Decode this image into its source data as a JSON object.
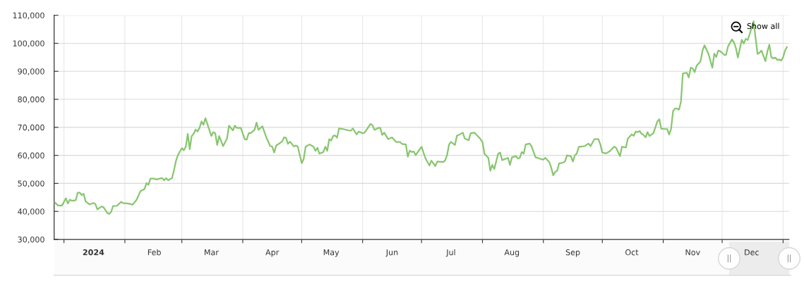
{
  "chart_data": {
    "type": "line",
    "annotations": [
      "Show all"
    ],
    "x": [
      "2023-12-27",
      "2023-12-29",
      "2023-12-31",
      "2024-01-02",
      "2024-01-03",
      "2024-01-04",
      "2024-01-05",
      "2024-01-07",
      "2024-01-08",
      "2024-01-09",
      "2024-01-10",
      "2024-01-11",
      "2024-01-12",
      "2024-01-14",
      "2024-01-16",
      "2024-01-17",
      "2024-01-18",
      "2024-01-20",
      "2024-01-21",
      "2024-01-23",
      "2024-01-24",
      "2024-01-25",
      "2024-01-26",
      "2024-01-28",
      "2024-01-30",
      "2024-01-31",
      "2024-02-03",
      "2024-02-05",
      "2024-02-07",
      "2024-02-09",
      "2024-02-11",
      "2024-02-12",
      "2024-02-13",
      "2024-02-14",
      "2024-02-16",
      "2024-02-17",
      "2024-02-20",
      "2024-02-21",
      "2024-02-22",
      "2024-02-23",
      "2024-02-25",
      "2024-02-26",
      "2024-02-27",
      "2024-02-28",
      "2024-03-01",
      "2024-03-02",
      "2024-03-03",
      "2024-03-04",
      "2024-03-05",
      "2024-03-06",
      "2024-03-07",
      "2024-03-08",
      "2024-03-09",
      "2024-03-10",
      "2024-03-11",
      "2024-03-12",
      "2024-03-13",
      "2024-03-16",
      "2024-03-17",
      "2024-03-18",
      "2024-03-19",
      "2024-03-20",
      "2024-03-22",
      "2024-03-24",
      "2024-03-25",
      "2024-03-27",
      "2024-03-28",
      "2024-03-29",
      "2024-03-31",
      "2024-04-02",
      "2024-04-03",
      "2024-04-04",
      "2024-04-05",
      "2024-04-07",
      "2024-04-08",
      "2024-04-09",
      "2024-04-11",
      "2024-04-13",
      "2024-04-15",
      "2024-04-16",
      "2024-04-17",
      "2024-04-18",
      "2024-04-21",
      "2024-04-22",
      "2024-04-23",
      "2024-04-24",
      "2024-04-25",
      "2024-04-27",
      "2024-04-28",
      "2024-04-29",
      "2024-05-01",
      "2024-05-02",
      "2024-05-03",
      "2024-05-05",
      "2024-05-06",
      "2024-05-07",
      "2024-05-08",
      "2024-05-09",
      "2024-05-10",
      "2024-05-12",
      "2024-05-13",
      "2024-05-14",
      "2024-05-15",
      "2024-05-16",
      "2024-05-17",
      "2024-05-18",
      "2024-05-19",
      "2024-05-20",
      "2024-05-22",
      "2024-05-25",
      "2024-05-26",
      "2024-05-27",
      "2024-05-29",
      "2024-05-30",
      "2024-06-01",
      "2024-06-02",
      "2024-06-05",
      "2024-06-06",
      "2024-06-07",
      "2024-06-09",
      "2024-06-10",
      "2024-06-11",
      "2024-06-12",
      "2024-06-14",
      "2024-06-16",
      "2024-06-18",
      "2024-06-20",
      "2024-06-21",
      "2024-06-23",
      "2024-06-24",
      "2024-06-25",
      "2024-06-26",
      "2024-06-27",
      "2024-06-28",
      "2024-07-01",
      "2024-07-03",
      "2024-07-05",
      "2024-07-06",
      "2024-07-08",
      "2024-07-09",
      "2024-07-12",
      "2024-07-13",
      "2024-07-14",
      "2024-07-15",
      "2024-07-16",
      "2024-07-18",
      "2024-07-19",
      "2024-07-20",
      "2024-07-22",
      "2024-07-23",
      "2024-07-25",
      "2024-07-26",
      "2024-07-28",
      "2024-07-29",
      "2024-07-31",
      "2024-08-01",
      "2024-08-02",
      "2024-08-04",
      "2024-08-05",
      "2024-08-06",
      "2024-08-07",
      "2024-08-09",
      "2024-08-10",
      "2024-08-11",
      "2024-08-14",
      "2024-08-15",
      "2024-08-16",
      "2024-08-18",
      "2024-08-19",
      "2024-08-20",
      "2024-08-21",
      "2024-08-22",
      "2024-08-23",
      "2024-08-25",
      "2024-08-26",
      "2024-08-28",
      "2024-08-30",
      "2024-08-31",
      "2024-09-01",
      "2024-09-02",
      "2024-09-04",
      "2024-09-05",
      "2024-09-06",
      "2024-09-07",
      "2024-09-08",
      "2024-09-09",
      "2024-09-11",
      "2024-09-12",
      "2024-09-13",
      "2024-09-15",
      "2024-09-16",
      "2024-09-17",
      "2024-09-18",
      "2024-09-19",
      "2024-09-22",
      "2024-09-24",
      "2024-09-25",
      "2024-09-27",
      "2024-09-29",
      "2024-09-30",
      "2024-10-01",
      "2024-10-03",
      "2024-10-05",
      "2024-10-07",
      "2024-10-08",
      "2024-10-10",
      "2024-10-11",
      "2024-10-13",
      "2024-10-14",
      "2024-10-16",
      "2024-10-17",
      "2024-10-18",
      "2024-10-19",
      "2024-10-20",
      "2024-10-21",
      "2024-10-22",
      "2024-10-23",
      "2024-10-24",
      "2024-10-25",
      "2024-10-27",
      "2024-10-29",
      "2024-10-30",
      "2024-10-31",
      "2024-11-02",
      "2024-11-03",
      "2024-11-04",
      "2024-11-05",
      "2024-11-06",
      "2024-11-07",
      "2024-11-08",
      "2024-11-09",
      "2024-11-10",
      "2024-11-11",
      "2024-11-13",
      "2024-11-14",
      "2024-11-15",
      "2024-11-16",
      "2024-11-17",
      "2024-11-18",
      "2024-11-20",
      "2024-11-21",
      "2024-11-22",
      "2024-11-23",
      "2024-11-24",
      "2024-11-26",
      "2024-11-27",
      "2024-11-28",
      "2024-11-29",
      "2024-11-30",
      "2024-12-02",
      "2024-12-03",
      "2024-12-04",
      "2024-12-06",
      "2024-12-07",
      "2024-12-08",
      "2024-12-09",
      "2024-12-11",
      "2024-12-12",
      "2024-12-13",
      "2024-12-14",
      "2024-12-15",
      "2024-12-17",
      "2024-12-19",
      "2024-12-20",
      "2024-12-21",
      "2024-12-23",
      "2024-12-24",
      "2024-12-25",
      "2024-12-26",
      "2024-12-27",
      "2024-12-28",
      "2024-12-29",
      "2024-12-30",
      "2024-12-31",
      "2025-01-01",
      "2025-01-02",
      "2025-01-03"
    ],
    "series": [
      {
        "color": "#87c66e",
        "values": [
          43400,
          42100,
          42100,
          44700,
          42800,
          44200,
          43800,
          44000,
          46700,
          46700,
          45800,
          46300,
          43600,
          42500,
          43000,
          42600,
          40700,
          41700,
          41600,
          39500,
          39100,
          39800,
          41900,
          42000,
          43400,
          43000,
          42800,
          42400,
          44200,
          47300,
          48000,
          50100,
          49500,
          51700,
          51700,
          51400,
          51900,
          51100,
          51900,
          51100,
          51900,
          54700,
          58000,
          60100,
          62600,
          61800,
          63100,
          67700,
          62200,
          66900,
          67700,
          69200,
          68500,
          69800,
          72100,
          70900,
          73300,
          66900,
          68300,
          67900,
          63700,
          66900,
          63300,
          66000,
          70600,
          68900,
          70600,
          69800,
          69800,
          65800,
          65600,
          67900,
          67900,
          69100,
          71700,
          69100,
          70400,
          66400,
          63300,
          63100,
          61000,
          63500,
          64900,
          66400,
          66300,
          64100,
          64900,
          63200,
          63500,
          63100,
          57200,
          58700,
          63100,
          63900,
          63500,
          63100,
          61600,
          62700,
          60600,
          61200,
          63100,
          61600,
          65800,
          65300,
          66900,
          67100,
          66300,
          69600,
          69400,
          68900,
          68800,
          69600,
          67500,
          68500,
          67900,
          68100,
          71200,
          70800,
          69100,
          69800,
          69800,
          67300,
          68100,
          65800,
          66400,
          64800,
          64800,
          64100,
          63900,
          59500,
          61700,
          61200,
          61400,
          60100,
          63100,
          58900,
          56400,
          58100,
          56200,
          57800,
          57600,
          58200,
          60100,
          63900,
          64800,
          63700,
          67000,
          67300,
          68100,
          66000,
          65400,
          67900,
          68100,
          67300,
          65800,
          64800,
          60600,
          59100,
          54500,
          56600,
          55100,
          60600,
          61000,
          58300,
          59100,
          56600,
          59300,
          59700,
          58900,
          59100,
          61200,
          60600,
          63900,
          64200,
          63200,
          59300,
          58900,
          58600,
          58500,
          59100,
          57600,
          55600,
          52900,
          54100,
          54500,
          57100,
          57400,
          57800,
          60000,
          59700,
          57800,
          60000,
          60600,
          63000,
          63300,
          64200,
          63300,
          65800,
          65800,
          63900,
          61000,
          60700,
          61600,
          63100,
          62700,
          59700,
          63100,
          62800,
          66000,
          67500,
          67000,
          68500,
          68300,
          68700,
          67700,
          67300,
          66400,
          68300,
          66900,
          67900,
          72100,
          72900,
          69500,
          69400,
          69400,
          67400,
          69400,
          75800,
          76700,
          76700,
          76300,
          79000,
          89200,
          89500,
          87800,
          91300,
          91000,
          89700,
          92000,
          93600,
          97400,
          99300,
          97800,
          96300,
          91300,
          96300,
          95100,
          97400,
          97200,
          95900,
          95900,
          98900,
          101400,
          100300,
          98300,
          94900,
          101300,
          99900,
          101600,
          101200,
          103300,
          107900,
          96200,
          96600,
          97400,
          93600,
          97000,
          99500,
          95100,
          94600,
          94900,
          94100,
          94200,
          93800,
          94900,
          97400,
          98700
        ]
      }
    ],
    "xlim": [
      "2023-12-27",
      "2025-01-04"
    ],
    "xticks": [
      {
        "value": "2024-01-01",
        "label": null
      },
      {
        "value": "2024-01-16",
        "label": "2024"
      },
      {
        "value": "2024-02-01",
        "label": null
      },
      {
        "value": "2024-02-16",
        "label": "Feb"
      },
      {
        "value": "2024-03-01",
        "label": null
      },
      {
        "value": "2024-03-16",
        "label": "Mar"
      },
      {
        "value": "2024-04-01",
        "label": null
      },
      {
        "value": "2024-04-16",
        "label": "Apr"
      },
      {
        "value": "2024-05-01",
        "label": null
      },
      {
        "value": "2024-05-16",
        "label": "May"
      },
      {
        "value": "2024-06-01",
        "label": null
      },
      {
        "value": "2024-06-16",
        "label": "Jun"
      },
      {
        "value": "2024-07-01",
        "label": null
      },
      {
        "value": "2024-07-16",
        "label": "Jul"
      },
      {
        "value": "2024-08-01",
        "label": null
      },
      {
        "value": "2024-08-16",
        "label": "Aug"
      },
      {
        "value": "2024-09-01",
        "label": null
      },
      {
        "value": "2024-09-16",
        "label": "Sep"
      },
      {
        "value": "2024-10-01",
        "label": null
      },
      {
        "value": "2024-10-16",
        "label": "Oct"
      },
      {
        "value": "2024-11-01",
        "label": null
      },
      {
        "value": "2024-11-16",
        "label": "Nov"
      },
      {
        "value": "2024-12-01",
        "label": null
      },
      {
        "value": "2024-12-16",
        "label": "Dec"
      },
      {
        "value": "2025-01-01",
        "label": null
      }
    ],
    "ylim": [
      30000,
      110000
    ],
    "yticks": [
      {
        "value": 30000,
        "label": "30,000"
      },
      {
        "value": 40000,
        "label": "40,000"
      },
      {
        "value": 50000,
        "label": "50,000"
      },
      {
        "value": 60000,
        "label": "60,000"
      },
      {
        "value": 70000,
        "label": "70,000"
      },
      {
        "value": 80000,
        "label": "80,000"
      },
      {
        "value": 90000,
        "label": "90,000"
      },
      {
        "value": 100000,
        "label": "100,000"
      },
      {
        "value": 110000,
        "label": "110,000"
      }
    ],
    "grid": true
  }
}
